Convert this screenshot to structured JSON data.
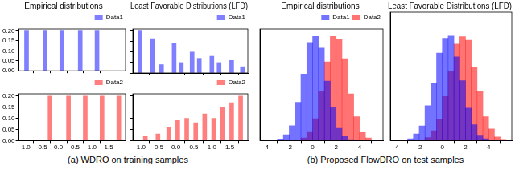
{
  "chart_data": [
    {
      "type": "bar",
      "title": "Empirical distributions",
      "x": [
        -0.95,
        -0.4,
        0.1,
        0.65,
        1.15
      ],
      "series": [
        {
          "name": "Data1",
          "color": "#0000ff",
          "values": [
            0.2,
            0.2,
            0.2,
            0.2,
            0.2
          ]
        }
      ],
      "xlim": [
        -1.2,
        2.0
      ],
      "xticks": [
        {
          "value": -1.0,
          "label": "-1.0"
        },
        {
          "value": -0.5,
          "label": "-0.5"
        },
        {
          "value": 0.0,
          "label": "0.0"
        },
        {
          "value": 0.5,
          "label": "0.5"
        },
        {
          "value": 1.0,
          "label": "1.0"
        },
        {
          "value": 1.5,
          "label": "1.5"
        }
      ],
      "ylim": [
        0,
        0.21
      ],
      "yticks": [
        {
          "value": 0,
          "label": "0.00"
        },
        {
          "value": 0.05,
          "label": "0.05"
        },
        {
          "value": 0.1,
          "label": "0.10"
        },
        {
          "value": 0.15,
          "label": "0.15"
        },
        {
          "value": 0.2,
          "label": "0.20"
        }
      ],
      "grid": false,
      "legend": "upper right",
      "tick_labels": "y"
    },
    {
      "type": "bar",
      "title": "Least Favorable Distributions (LFD)",
      "x": [
        -1.0,
        -0.65,
        -0.4,
        -0.05,
        0.15,
        0.45,
        0.65,
        1.0,
        1.2,
        1.55,
        1.85
      ],
      "series": [
        {
          "name": "Data1",
          "color": "#0000ff",
          "values": [
            0.2,
            0.16,
            0.04,
            0.14,
            0.05,
            0.1,
            0.07,
            0.08,
            0.05,
            0.06,
            0.03
          ]
        }
      ],
      "xlim": [
        -1.2,
        2.0
      ],
      "xticks": [
        {
          "value": -1.0,
          "label": "-1.0"
        },
        {
          "value": -0.5,
          "label": "-0.5"
        },
        {
          "value": 0.0,
          "label": "0.0"
        },
        {
          "value": 0.5,
          "label": "0.5"
        },
        {
          "value": 1.0,
          "label": "1.0"
        },
        {
          "value": 1.5,
          "label": "1.5"
        }
      ],
      "ylim": [
        0,
        0.21
      ],
      "yticks": [
        {
          "value": 0,
          "label": "0.00"
        },
        {
          "value": 0.05,
          "label": "0.05"
        },
        {
          "value": 0.1,
          "label": "0.10"
        },
        {
          "value": 0.15,
          "label": "0.15"
        },
        {
          "value": 0.2,
          "label": "0.20"
        }
      ],
      "grid": false,
      "legend": "upper right",
      "tick_labels": false
    },
    {
      "type": "bar",
      "x": [
        -0.25,
        0.3,
        0.8,
        1.3,
        1.8
      ],
      "series": [
        {
          "name": "Data2",
          "color": "#ff0000",
          "values": [
            0.2,
            0.2,
            0.2,
            0.2,
            0.2
          ]
        }
      ],
      "xlim": [
        -1.2,
        2.0
      ],
      "xticks": [
        {
          "value": -1.0,
          "label": "-1.0"
        },
        {
          "value": -0.5,
          "label": "-0.5"
        },
        {
          "value": 0.0,
          "label": "0.0"
        },
        {
          "value": 0.5,
          "label": "0.5"
        },
        {
          "value": 1.0,
          "label": "1.0"
        },
        {
          "value": 1.5,
          "label": "1.5"
        }
      ],
      "ylim": [
        0,
        0.21
      ],
      "yticks": [
        {
          "value": 0,
          "label": "0.00"
        },
        {
          "value": 0.05,
          "label": "0.05"
        },
        {
          "value": 0.1,
          "label": "0.10"
        },
        {
          "value": 0.15,
          "label": "0.15"
        },
        {
          "value": 0.2,
          "label": "0.20"
        }
      ],
      "grid": false,
      "legend": "upper right",
      "tick_labels": true
    },
    {
      "type": "bar",
      "x": [
        -0.85,
        -0.5,
        -0.2,
        0.05,
        0.3,
        0.55,
        0.8,
        1.05,
        1.3,
        1.55,
        1.8
      ],
      "series": [
        {
          "name": "Data2",
          "color": "#ff0000",
          "values": [
            0.02,
            0.03,
            0.06,
            0.09,
            0.1,
            0.08,
            0.12,
            0.1,
            0.15,
            0.17,
            0.2
          ]
        }
      ],
      "xlim": [
        -1.2,
        2.0
      ],
      "xticks": [
        {
          "value": -1.0,
          "label": "-1.0"
        },
        {
          "value": -0.5,
          "label": "-0.5"
        },
        {
          "value": 0.0,
          "label": "0.0"
        },
        {
          "value": 0.5,
          "label": "0.5"
        },
        {
          "value": 1.0,
          "label": "1.0"
        },
        {
          "value": 1.5,
          "label": "1.5"
        }
      ],
      "ylim": [
        0,
        0.21
      ],
      "yticks": [
        {
          "value": 0,
          "label": "0.00"
        },
        {
          "value": 0.05,
          "label": "0.05"
        },
        {
          "value": 0.1,
          "label": "0.10"
        },
        {
          "value": 0.15,
          "label": "0.15"
        },
        {
          "value": 0.2,
          "label": "0.20"
        }
      ],
      "grid": false,
      "legend": "upper right",
      "tick_labels": "x"
    },
    {
      "type": "histogram",
      "title": "Empirical distributions",
      "bins": [
        -4,
        -3.5,
        -3,
        -2.5,
        -2,
        -1.5,
        -1,
        -0.5,
        0,
        0.5,
        1,
        1.5,
        2,
        2.5,
        3,
        3.5,
        4,
        4.5,
        5,
        5.5,
        6
      ],
      "series": [
        {
          "name": "Data1",
          "color": "#0000ff",
          "values": [
            0,
            1,
            3,
            11,
            28,
            72,
            125,
            183,
            196,
            174,
            112,
            62,
            23,
            8,
            2,
            0,
            0,
            0,
            0,
            0
          ]
        },
        {
          "name": "Data2",
          "color": "#ff0000",
          "values": [
            0,
            0,
            0,
            0,
            0,
            1,
            5,
            17,
            41,
            93,
            148,
            196,
            190,
            154,
            88,
            45,
            15,
            5,
            1,
            0
          ]
        }
      ],
      "xlim": [
        -4.5,
        6
      ],
      "xticks": [
        -4,
        -2,
        0,
        2,
        4
      ],
      "ylim": [
        0,
        210
      ],
      "yticks": [],
      "grid": false,
      "legend": "upper right",
      "tick_labels": "x"
    },
    {
      "type": "histogram",
      "title": "Least Favorable Distributions (LFD)",
      "bins": [
        -4,
        -3.5,
        -3,
        -2.5,
        -2,
        -1.5,
        -1,
        -0.5,
        0,
        0.5,
        1,
        1.5,
        2,
        2.5,
        3,
        3.5,
        4,
        4.5,
        5,
        5.5,
        6
      ],
      "series": [
        {
          "name": "Data1",
          "color": "#0000ff",
          "values": [
            0,
            1,
            3,
            11,
            24,
            57,
            94,
            143,
            166,
            171,
            137,
            98,
            53,
            26,
            9,
            3,
            1,
            0,
            0,
            0
          ]
        },
        {
          "name": "Data2",
          "color": "#ff0000",
          "values": [
            0,
            0,
            0,
            0,
            1,
            5,
            16,
            35,
            72,
            113,
            158,
            170,
            164,
            120,
            80,
            39,
            19,
            6,
            2,
            0
          ]
        }
      ],
      "xlim": [
        -4.5,
        6
      ],
      "xticks": [
        -4,
        -2,
        0,
        2,
        4
      ],
      "ylim": [
        0,
        210
      ],
      "yticks": [],
      "grid": false,
      "tick_labels": "x"
    }
  ],
  "captions": [
    "(a) WDRO on training samples",
    "(b) Proposed FlowDRO on test samples"
  ]
}
